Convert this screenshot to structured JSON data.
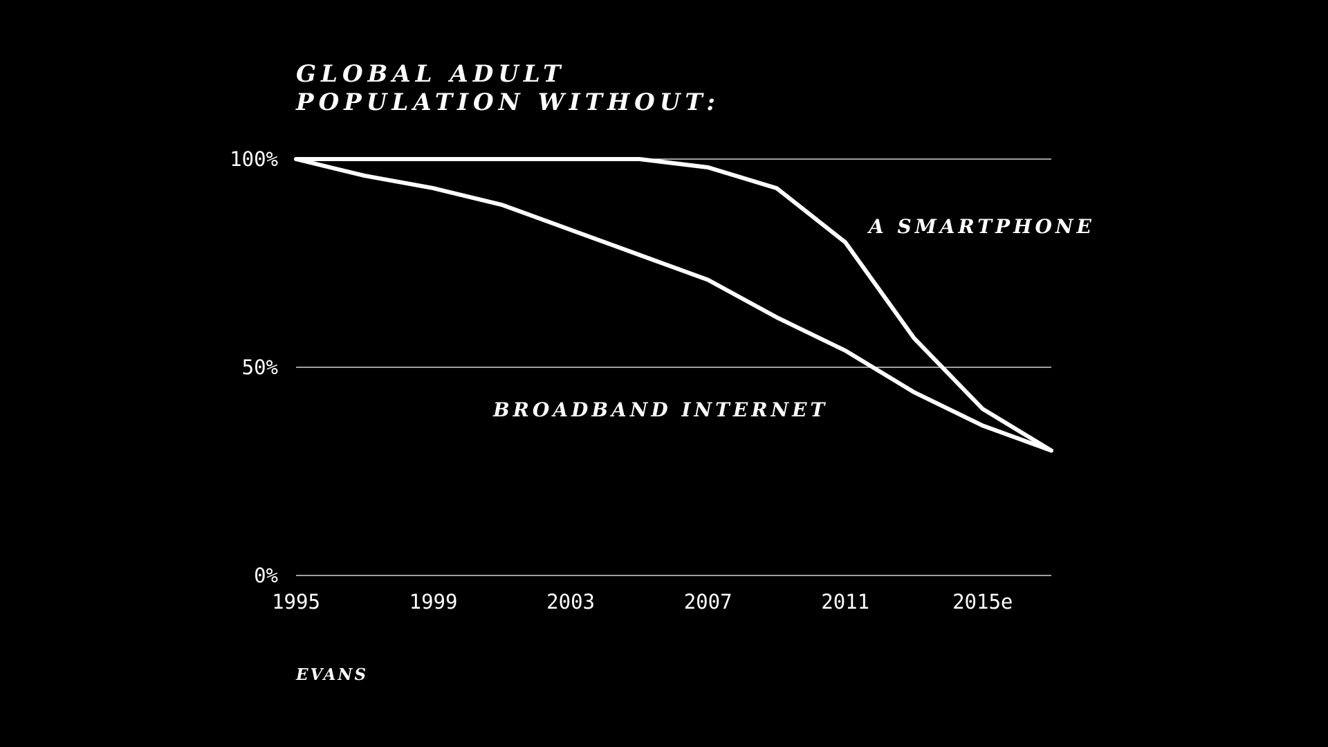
{
  "chart_data": {
    "type": "line",
    "title_lines": [
      "GLOBAL ADULT",
      "POPULATION WITHOUT:"
    ],
    "x": [
      1995,
      1997,
      1999,
      2001,
      2003,
      2005,
      2007,
      2009,
      2011,
      2013,
      2015,
      2017
    ],
    "xlim": [
      1995,
      2017
    ],
    "x_ticks": [
      {
        "value": 1995,
        "label": "1995"
      },
      {
        "value": 1999,
        "label": "1999"
      },
      {
        "value": 2003,
        "label": "2003"
      },
      {
        "value": 2007,
        "label": "2007"
      },
      {
        "value": 2011,
        "label": "2011"
      },
      {
        "value": 2015,
        "label": "2015e"
      }
    ],
    "ylim": [
      0,
      100
    ],
    "y_ticks": [
      {
        "value": 0,
        "label": "0%"
      },
      {
        "value": 50,
        "label": "50%"
      },
      {
        "value": 100,
        "label": "100%"
      }
    ],
    "grid": true,
    "series": [
      {
        "name": "A SMARTPHONE",
        "values": [
          100,
          100,
          100,
          100,
          100,
          100,
          98,
          93,
          80,
          57,
          40,
          30
        ]
      },
      {
        "name": "BROADBAND INTERNET",
        "values": [
          100,
          96,
          93,
          89,
          83,
          77,
          71,
          62,
          54,
          44,
          36,
          30
        ]
      }
    ],
    "source": "EVANS",
    "line_color": "#ffffff",
    "background_color": "#000000"
  }
}
